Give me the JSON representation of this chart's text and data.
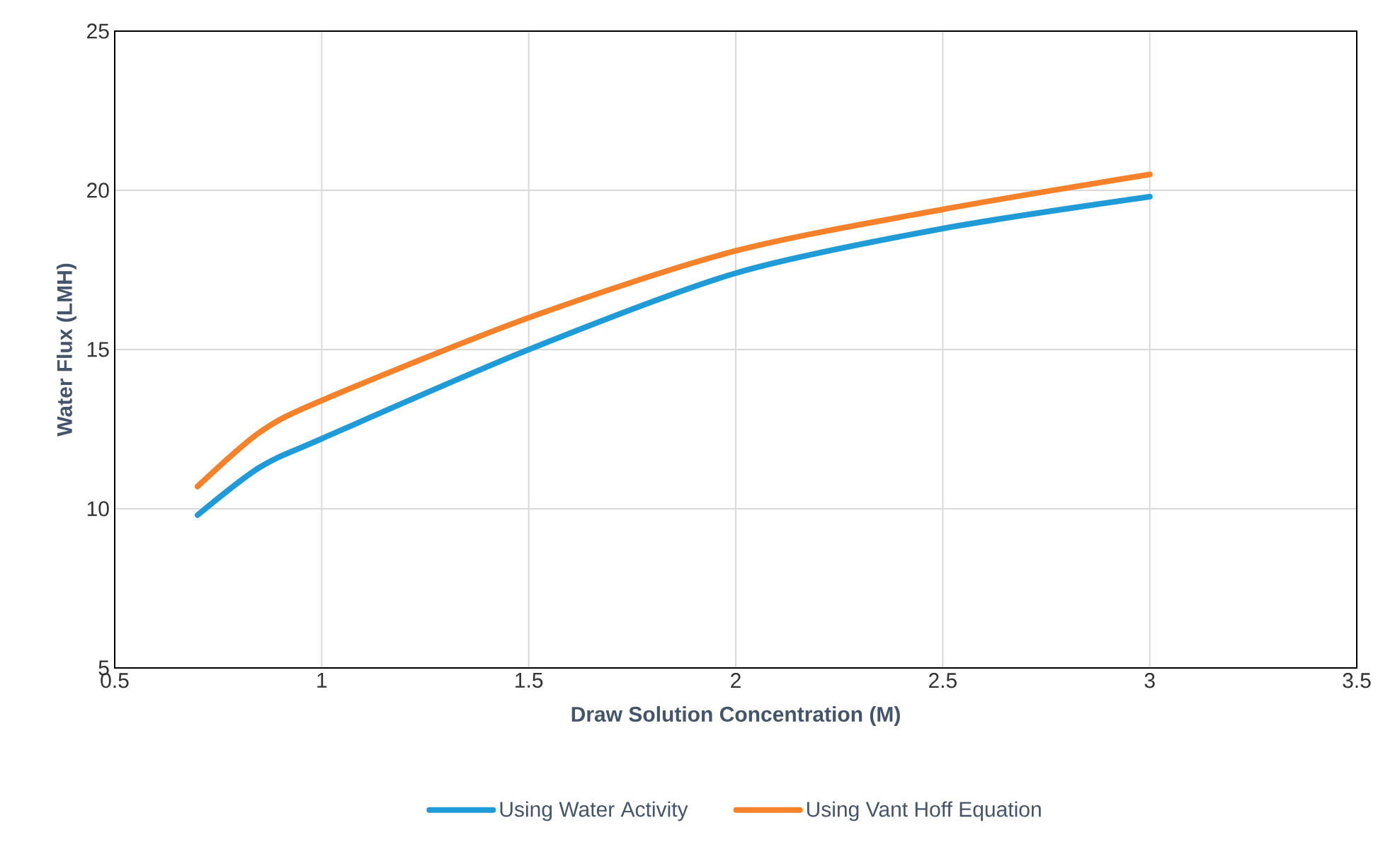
{
  "chart_data": {
    "type": "line",
    "xlabel": "Draw Solution Concentration (M)",
    "ylabel": "Water Flux (LMH)",
    "x": [
      0.7,
      0.85,
      1.0,
      1.5,
      2.0,
      2.5,
      3.0
    ],
    "series": [
      {
        "name": "Using Water Activity",
        "color": "#1f9bd7",
        "values": [
          9.8,
          11.3,
          12.2,
          15.0,
          17.4,
          18.8,
          19.8
        ]
      },
      {
        "name": "Using Vant Hoff Equation",
        "color": "#f5822a",
        "values": [
          10.7,
          12.4,
          13.4,
          16.0,
          18.1,
          19.4,
          20.5
        ]
      }
    ],
    "xlim": [
      0.5,
      3.5
    ],
    "xticks": [
      0.5,
      1,
      1.5,
      2,
      2.5,
      3,
      3.5
    ],
    "ylim": [
      5,
      25
    ],
    "yticks": [
      5,
      10,
      15,
      20,
      25
    ],
    "grid": true,
    "legend": "bottom",
    "marker": "none",
    "line_style": "solid"
  }
}
